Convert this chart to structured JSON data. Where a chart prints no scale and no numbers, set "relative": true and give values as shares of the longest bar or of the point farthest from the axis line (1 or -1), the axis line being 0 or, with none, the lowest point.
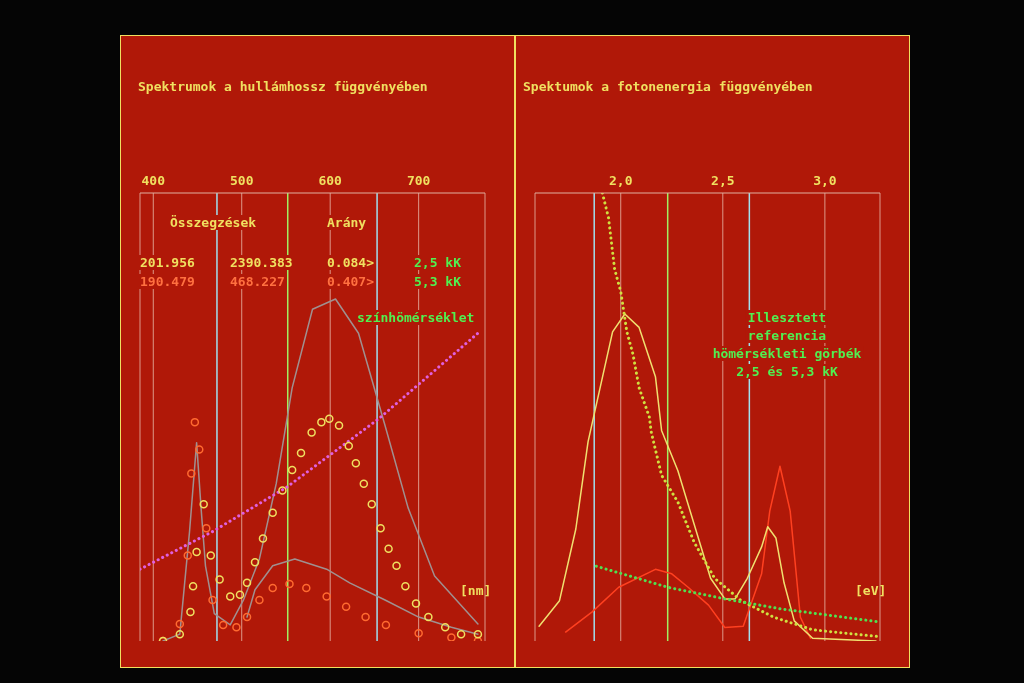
{
  "chart_data": [
    {
      "type": "line",
      "title": "Spektrumok a hullámhossz függvényében",
      "xlabel": "[nm]",
      "xlim": [
        385,
        775
      ],
      "xticks": [
        400,
        500,
        600,
        700
      ],
      "relative": true,
      "grid": "x",
      "legend": false,
      "annotations": [
        "Összegzések",
        "Arány",
        "201.956",
        "2390.383",
        "0.084>",
        "2,5 kK",
        "190.479",
        "468.227",
        "0.407>",
        "5,3 kK",
        "színhömérséklet"
      ],
      "ref_lines": [
        {
          "axis": "x",
          "value": 472,
          "color": "#a0e0f0"
        },
        {
          "axis": "x",
          "value": 653,
          "color": "#a0e0f0"
        },
        {
          "axis": "x",
          "value": 552,
          "color": "#a0f060"
        }
      ],
      "series": [
        {
          "color": "#a09090",
          "marker": "none",
          "line_style": "solid",
          "x": [
            411,
            430,
            441,
            449,
            454,
            459,
            469,
            487,
            502,
            520,
            539,
            557,
            580,
            606,
            632,
            662,
            688,
            718,
            767
          ],
          "values": [
            0,
            0.02,
            0.32,
            0.58,
            0.39,
            0.22,
            0.08,
            0.047,
            0.12,
            0.24,
            0.46,
            0.74,
            0.97,
            1,
            0.9,
            0.63,
            0.39,
            0.19,
            0.05
          ]
        },
        {
          "color": "#a09090",
          "marker": "none",
          "line_style": "solid",
          "x": [
            506,
            515,
            535,
            560,
            596,
            622,
            662,
            700,
            737,
            767
          ],
          "values": [
            0.07,
            0.15,
            0.22,
            0.24,
            0.21,
            0.17,
            0.12,
            0.07,
            0.04,
            0.02
          ]
        },
        {
          "color": "#e060e0",
          "marker": "none",
          "line_style": "dotted",
          "x": [
            385,
            467,
            551,
            655,
            767
          ],
          "values": [
            0.21,
            0.32,
            0.45,
            0.65,
            0.9
          ]
        },
        {
          "type": "scatter",
          "color": "#ff6a30",
          "marker": "circle",
          "x": [
            411,
            430,
            439,
            443,
            447,
            452,
            460,
            467,
            479,
            494,
            506,
            520,
            535,
            554,
            573,
            596,
            618,
            640,
            663,
            700,
            737,
            767
          ],
          "values": [
            0,
            0.05,
            0.25,
            0.49,
            0.64,
            0.56,
            0.33,
            0.12,
            0.047,
            0.04,
            0.07,
            0.12,
            0.155,
            0.167,
            0.155,
            0.13,
            0.1,
            0.07,
            0.047,
            0.023,
            0.01,
            0
          ]
        },
        {
          "type": "scatter",
          "color": "#f0e060",
          "marker": "circle",
          "x": [
            411,
            430,
            442,
            445,
            449,
            457,
            465,
            475,
            487,
            498,
            506,
            515,
            524,
            535,
            546,
            557,
            567,
            579,
            590,
            599,
            610,
            621,
            629,
            638,
            647,
            657,
            666,
            675,
            685,
            697,
            711,
            730,
            748,
            767
          ],
          "values": [
            0,
            0.02,
            0.085,
            0.16,
            0.26,
            0.4,
            0.25,
            0.18,
            0.13,
            0.135,
            0.17,
            0.23,
            0.3,
            0.375,
            0.44,
            0.5,
            0.55,
            0.61,
            0.64,
            0.65,
            0.63,
            0.57,
            0.52,
            0.46,
            0.4,
            0.33,
            0.27,
            0.22,
            0.16,
            0.11,
            0.07,
            0.04,
            0.02,
            0.02
          ]
        }
      ]
    },
    {
      "type": "line",
      "title": "Spektumok a fotonenergia függvényében",
      "xlabel": "[eV]",
      "xlim": [
        1.58,
        3.27
      ],
      "xticks": [
        {
          "value": 2,
          "label": "2,0"
        },
        {
          "value": 2.5,
          "label": "2,5"
        },
        {
          "value": 3,
          "label": "3,0"
        }
      ],
      "relative": true,
      "grid": "x",
      "legend": false,
      "annotations": [
        "Illesztett",
        "referencia",
        "hömérsékleti görbék",
        "2,5 és 5,3 kK"
      ],
      "ref_lines": [
        {
          "axis": "x",
          "value": 1.87,
          "color": "#a0e0f0"
        },
        {
          "axis": "x",
          "value": 2.63,
          "color": "#a0e0f0"
        },
        {
          "axis": "x",
          "value": 2.23,
          "color": "#a0f060"
        }
      ],
      "series": [
        {
          "color": "#ff4020",
          "marker": "none",
          "line_style": "solid",
          "x": [
            1.73,
            1.86,
            1.99,
            2.17,
            2.25,
            2.33,
            2.43,
            2.51,
            2.6,
            2.69,
            2.73,
            2.78,
            2.83,
            2.88,
            2.93
          ],
          "values": [
            0.02,
            0.065,
            0.12,
            0.16,
            0.15,
            0.12,
            0.08,
            0.03,
            0.033,
            0.15,
            0.29,
            0.39,
            0.29,
            0.053,
            0.006
          ]
        },
        {
          "color": "#f0e070",
          "marker": "none",
          "line_style": "solid",
          "x": [
            1.6,
            1.7,
            1.78,
            1.84,
            1.96,
            2.02,
            2.09,
            2.17,
            2.2,
            2.28,
            2.36,
            2.44,
            2.51,
            2.56,
            2.62,
            2.69,
            2.72,
            2.76,
            2.8,
            2.85,
            2.94,
            3.25
          ],
          "values": [
            0.033,
            0.09,
            0.25,
            0.445,
            0.69,
            0.73,
            0.7,
            0.59,
            0.47,
            0.38,
            0.26,
            0.14,
            0.094,
            0.094,
            0.14,
            0.21,
            0.255,
            0.23,
            0.13,
            0.045,
            0.006,
            0
          ]
        },
        {
          "color": "#d0e040",
          "marker": "none",
          "line_style": "dotted",
          "x": [
            1.91,
            1.94,
            1.97,
            2,
            2.03,
            2.06,
            2.09,
            2.14,
            2.15,
            2.2,
            2.28,
            2.36,
            2.46,
            2.59,
            2.75,
            2.94,
            3.26
          ],
          "values": [
            1,
            0.945,
            0.83,
            0.78,
            0.69,
            0.64,
            0.565,
            0.5,
            0.465,
            0.37,
            0.31,
            0.22,
            0.14,
            0.09,
            0.053,
            0.025,
            0.01
          ]
        },
        {
          "color": "#50e050",
          "marker": "none",
          "line_style": "dotted",
          "x": [
            1.88,
            2.23,
            2.51,
            2.78,
            3.26
          ],
          "values": [
            0.167,
            0.12,
            0.094,
            0.072,
            0.043
          ]
        }
      ]
    }
  ]
}
